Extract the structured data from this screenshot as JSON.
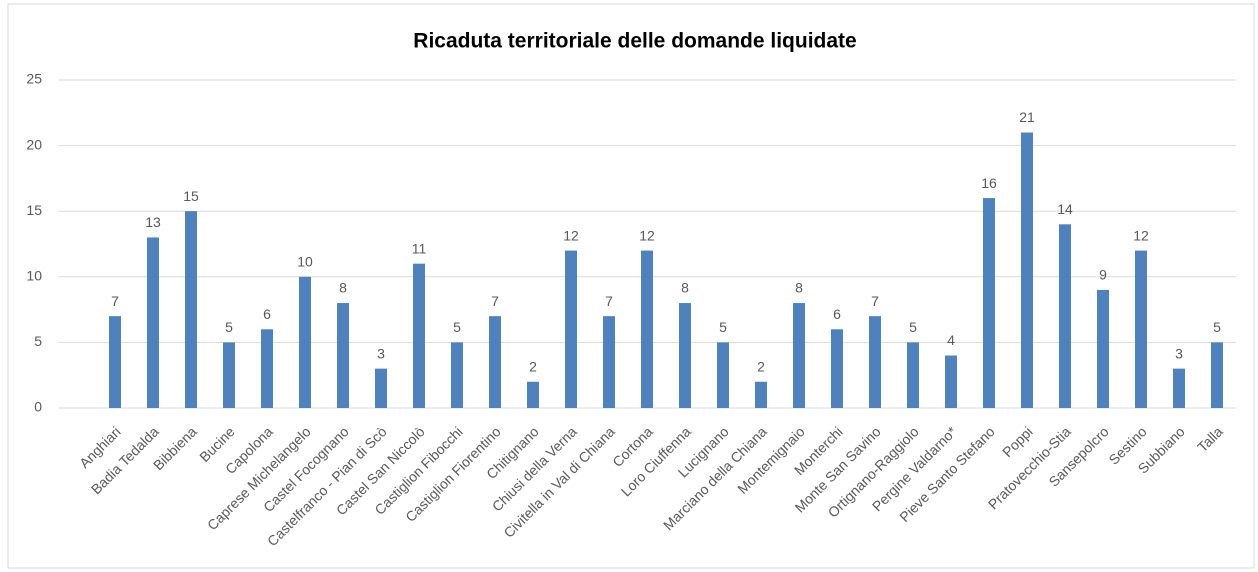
{
  "chart_data": {
    "type": "bar",
    "title": "Ricaduta territoriale delle domande liquidate",
    "categories": [
      "Anghiari",
      "Badia Tedalda",
      "Bibbiena",
      "Bucine",
      "Capolona",
      "Caprese Michelangelo",
      "Castel Focognano",
      "Castelfranco - Pian di Scò",
      "Castel San Niccolò",
      "Castiglion Fibocchi",
      "Castiglion Fiorentino",
      "Chitignano",
      "Chiusi della Verna",
      "Civitella in Val di Chiana",
      "Cortona",
      "Loro Ciuffenna",
      "Lucignano",
      "Marciano della Chiana",
      "Montemignaio",
      "Monterchi",
      "Monte San Savino",
      "Ortignano-Raggiolo",
      "Pergine Valdarno*",
      "Pieve Santo Stefano",
      "Poppi",
      "Pratovecchio-Stia",
      "Sansepolcro",
      "Sestino",
      "Subbiano",
      "Talla"
    ],
    "values": [
      7,
      13,
      15,
      5,
      6,
      10,
      8,
      3,
      11,
      5,
      7,
      2,
      12,
      7,
      12,
      8,
      5,
      2,
      8,
      6,
      7,
      5,
      4,
      16,
      21,
      14,
      9,
      12,
      3,
      5
    ],
    "color": "#4f81bd",
    "ylim": [
      0,
      25
    ],
    "yticks": [
      0,
      5,
      10,
      15,
      20,
      25
    ],
    "grid": true
  }
}
